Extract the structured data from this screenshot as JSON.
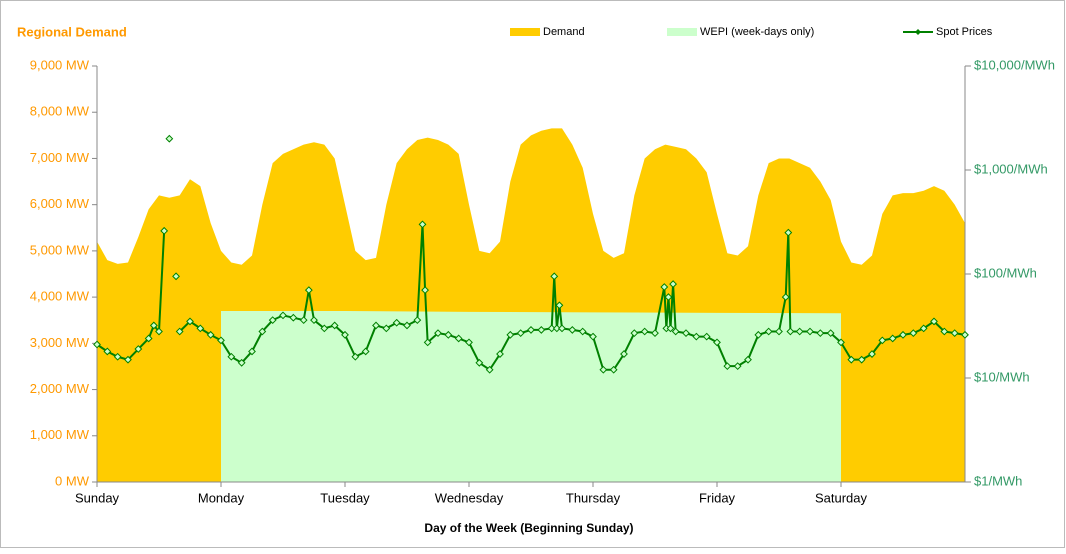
{
  "chart_data": {
    "type": "area",
    "title": "Regional Demand",
    "x_label": "Day of the Week (Beginning Sunday)",
    "xlim": [
      0,
      168
    ],
    "xticks": [
      {
        "value": 0,
        "label": "Sunday"
      },
      {
        "value": 24,
        "label": "Monday"
      },
      {
        "value": 48,
        "label": "Tuesday"
      },
      {
        "value": 72,
        "label": "Wednesday"
      },
      {
        "value": 96,
        "label": "Thursday"
      },
      {
        "value": 120,
        "label": "Friday"
      },
      {
        "value": 144,
        "label": "Saturday"
      }
    ],
    "ylim": [
      0,
      9000
    ],
    "yticks": [
      {
        "value": 0,
        "label": "0 MW"
      },
      {
        "value": 1000,
        "label": "1,000 MW"
      },
      {
        "value": 2000,
        "label": "2,000 MW"
      },
      {
        "value": 3000,
        "label": "3,000 MW"
      },
      {
        "value": 4000,
        "label": "4,000 MW"
      },
      {
        "value": 5000,
        "label": "5,000 MW"
      },
      {
        "value": 6000,
        "label": "6,000 MW"
      },
      {
        "value": 7000,
        "label": "7,000 MW"
      },
      {
        "value": 8000,
        "label": "8,000 MW"
      },
      {
        "value": 9000,
        "label": "9,000 MW"
      }
    ],
    "y2lim": [
      1,
      10000
    ],
    "y2_log": true,
    "y2ticks": [
      {
        "value": 1,
        "label": "$1/MWh"
      },
      {
        "value": 10,
        "label": "$10/MWh"
      },
      {
        "value": 100,
        "label": "$100/MWh"
      },
      {
        "value": 1000,
        "label": "$1,000/MWh"
      },
      {
        "value": 10000,
        "label": "$10,000/MWh"
      }
    ],
    "series": [
      {
        "name": "Demand",
        "color": "#FFCC00",
        "kind": "area",
        "x": [
          0,
          2,
          4,
          6,
          8,
          10,
          12,
          14,
          16,
          18,
          20,
          22,
          24,
          26,
          28,
          30,
          32,
          34,
          36,
          38,
          40,
          42,
          44,
          46,
          48,
          50,
          52,
          54,
          56,
          58,
          60,
          62,
          64,
          66,
          68,
          70,
          72,
          74,
          76,
          78,
          80,
          82,
          84,
          86,
          88,
          90,
          92,
          94,
          96,
          98,
          100,
          102,
          104,
          106,
          108,
          110,
          112,
          114,
          116,
          118,
          120,
          122,
          124,
          126,
          128,
          130,
          132,
          134,
          136,
          138,
          140,
          142,
          144,
          146,
          148,
          150,
          152,
          154,
          156,
          158,
          160,
          162,
          164,
          166,
          168
        ],
        "values": [
          5200,
          4800,
          4720,
          4750,
          5300,
          5900,
          6200,
          6150,
          6200,
          6550,
          6400,
          5600,
          5000,
          4750,
          4700,
          4900,
          6000,
          6900,
          7100,
          7200,
          7300,
          7350,
          7300,
          7000,
          6000,
          5000,
          4800,
          4850,
          6000,
          6900,
          7200,
          7400,
          7450,
          7400,
          7300,
          7100,
          6000,
          5000,
          4950,
          5200,
          6500,
          7300,
          7500,
          7600,
          7650,
          7650,
          7300,
          6800,
          5800,
          5000,
          4850,
          4950,
          6200,
          7000,
          7200,
          7300,
          7250,
          7200,
          7000,
          6700,
          5800,
          4950,
          4900,
          5100,
          6200,
          6900,
          7000,
          7000,
          6900,
          6800,
          6500,
          6100,
          5200,
          4750,
          4700,
          4900,
          5800,
          6200,
          6250,
          6250,
          6300,
          6400,
          6300,
          6000,
          5600
        ]
      },
      {
        "name": "WEPI (week-days only)",
        "color": "#CCFFCC",
        "kind": "area",
        "x": [
          24,
          48,
          72,
          96,
          120,
          144
        ],
        "values": [
          3700,
          3700,
          3680,
          3670,
          3660,
          3650
        ]
      },
      {
        "name": "Spot Prices",
        "color": "#008000",
        "kind": "line",
        "axis": "y2",
        "x": [
          0,
          2,
          4,
          6,
          8,
          10,
          11,
          12,
          13,
          13.5,
          14,
          14.5,
          15.3,
          15.8,
          16,
          18,
          20,
          22,
          24,
          26,
          28,
          30,
          32,
          34,
          36,
          38,
          40,
          41,
          42,
          44,
          46,
          48,
          50,
          52,
          54,
          56,
          58,
          60,
          62,
          63,
          63.5,
          64,
          66,
          68,
          70,
          72,
          74,
          76,
          78,
          80,
          82,
          84,
          86,
          88,
          88.5,
          89,
          89.5,
          90,
          92,
          94,
          96,
          98,
          100,
          102,
          104,
          106,
          108,
          109.8,
          110.2,
          110.6,
          111,
          111.5,
          112,
          114,
          116,
          118,
          120,
          122,
          124,
          126,
          128,
          130,
          132,
          133.3,
          133.8,
          134.2,
          136,
          138,
          140,
          142,
          144,
          146,
          148,
          150,
          152,
          154,
          156,
          158,
          160,
          162,
          164,
          166,
          168
        ],
        "values": [
          21,
          18,
          16,
          15,
          19,
          24,
          32,
          28,
          260,
          null,
          2000,
          null,
          95,
          null,
          28,
          35,
          30,
          26,
          23,
          16,
          14,
          18,
          28,
          36,
          40,
          38,
          36,
          70,
          36,
          30,
          32,
          26,
          16,
          18,
          32,
          30,
          34,
          32,
          36,
          300,
          70,
          22,
          27,
          26,
          24,
          22,
          14,
          12,
          17,
          26,
          27,
          29,
          29,
          30,
          95,
          30,
          50,
          30,
          29,
          28,
          25,
          12,
          12,
          17,
          27,
          28,
          27,
          75,
          30,
          60,
          30,
          80,
          28,
          27,
          25,
          25,
          22,
          13,
          13,
          15,
          26,
          28,
          28,
          60,
          250,
          28,
          28,
          28,
          27,
          27,
          22,
          15,
          15,
          17,
          23,
          24,
          26,
          27,
          30,
          35,
          28,
          27,
          26
        ]
      }
    ]
  }
}
